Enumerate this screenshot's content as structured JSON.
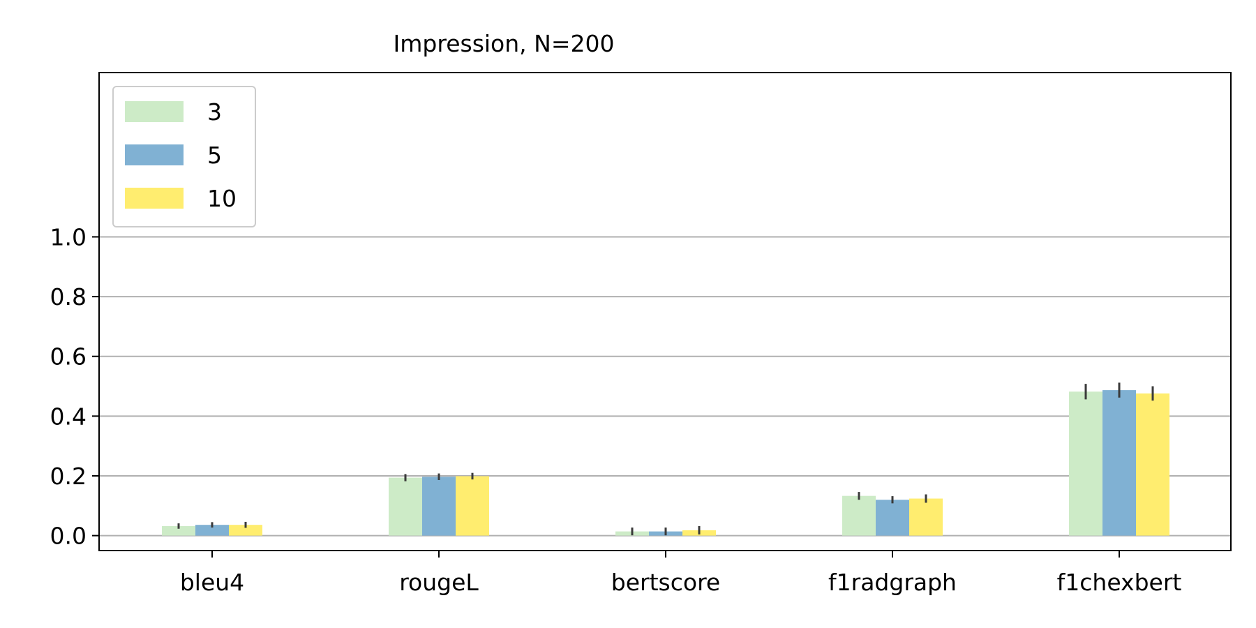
{
  "chart_data": {
    "type": "bar",
    "title": "Impression, N=200",
    "xlabel": "",
    "ylabel": "",
    "categories": [
      "bleu4",
      "rougeL",
      "bertscore",
      "f1radgraph",
      "f1chexbert"
    ],
    "yticks": [
      "0.0",
      "0.2",
      "0.4",
      "0.6",
      "0.8",
      "1.0"
    ],
    "ytick_values": [
      0.0,
      0.2,
      0.4,
      0.6,
      0.8,
      1.0
    ],
    "ylim": [
      -0.05,
      1.55
    ],
    "grid": "y",
    "legend_position": "top-left",
    "series": [
      {
        "name": "3",
        "color": "#cdebc7",
        "values": [
          0.032,
          0.194,
          0.014,
          0.133,
          0.482
        ],
        "errors": [
          0.009,
          0.012,
          0.013,
          0.013,
          0.026
        ]
      },
      {
        "name": "5",
        "color": "#80b1d3",
        "values": [
          0.036,
          0.197,
          0.014,
          0.12,
          0.487
        ],
        "errors": [
          0.009,
          0.011,
          0.013,
          0.012,
          0.025
        ]
      },
      {
        "name": "10",
        "color": "#ffed6f",
        "values": [
          0.036,
          0.199,
          0.018,
          0.124,
          0.476
        ],
        "errors": [
          0.01,
          0.011,
          0.014,
          0.014,
          0.024
        ]
      }
    ]
  }
}
